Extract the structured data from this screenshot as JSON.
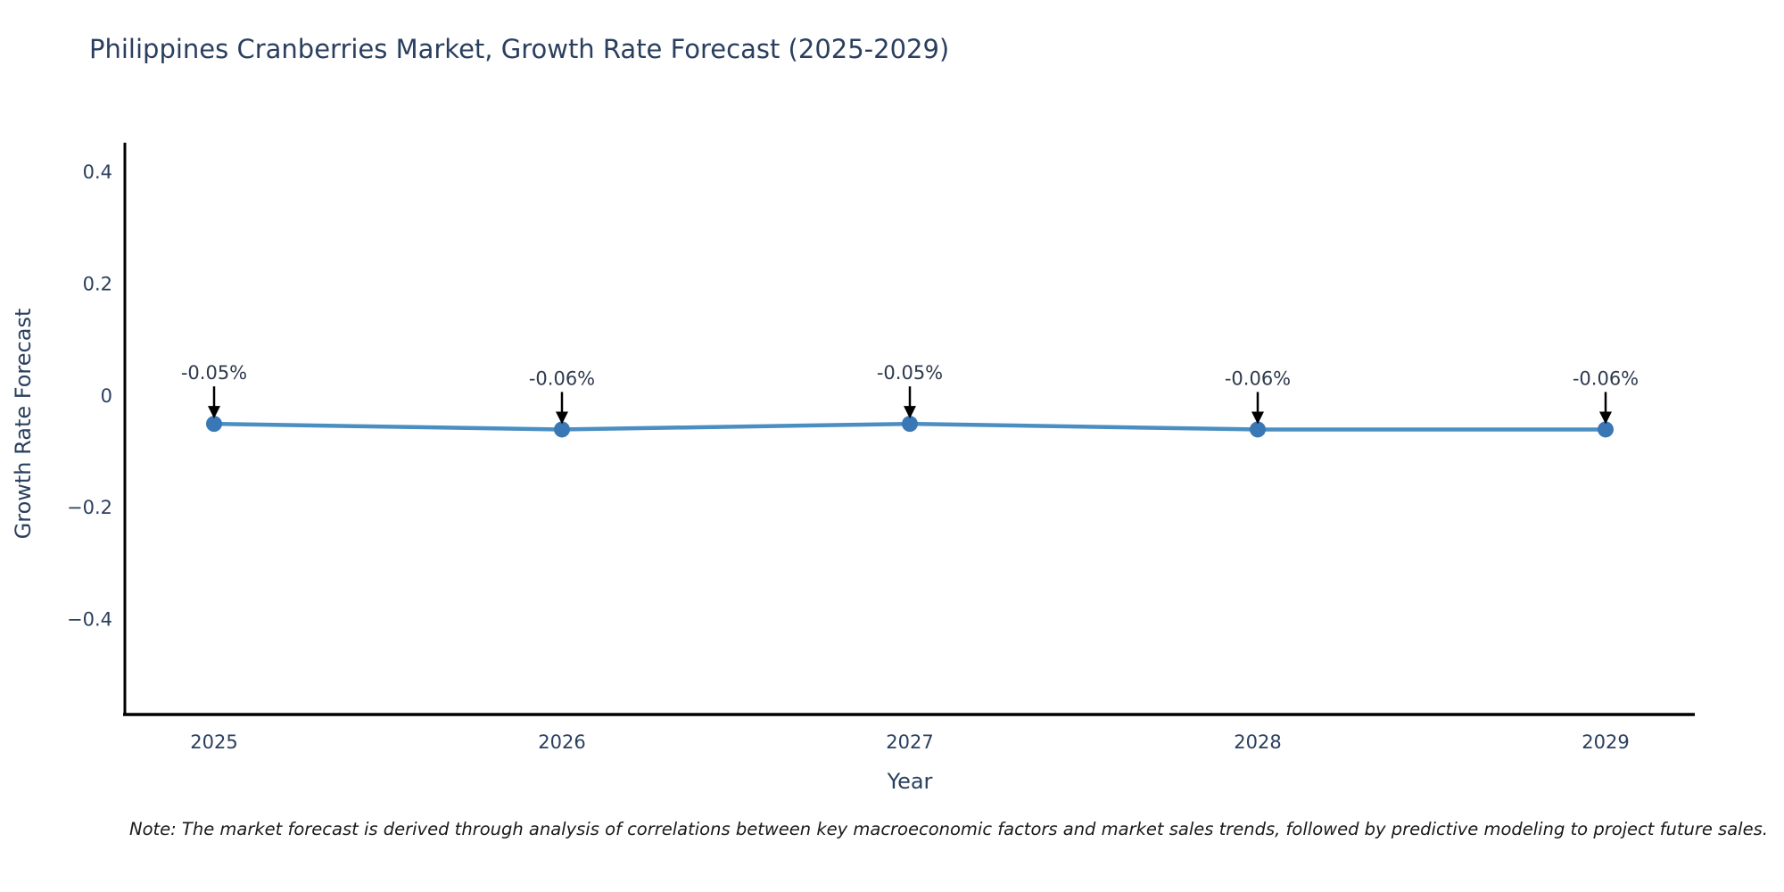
{
  "note": "Note: The market forecast is derived through analysis of correlations between key macroeconomic factors and market sales trends, followed by predictive modeling to project future sales.",
  "colors": {
    "title": "#2a3f5f",
    "tick": "#2a3f5f",
    "annotation": "#2e3a4e",
    "axis": "#000000",
    "line": "#4a8ec2",
    "marker": "#3a78b5",
    "arrow": "#000000",
    "background": "#ffffff"
  },
  "chart_data": {
    "type": "line",
    "title": "Philippines Cranberries Market, Growth Rate Forecast (2025-2029)",
    "xlabel": "Year",
    "ylabel": "Growth Rate Forecast",
    "x": [
      "2025",
      "2026",
      "2027",
      "2028",
      "2029"
    ],
    "values": [
      -0.05,
      -0.06,
      -0.05,
      -0.06,
      -0.06
    ],
    "point_labels": [
      "-0.05%",
      "-0.06%",
      "-0.05%",
      "-0.06%",
      "-0.06%"
    ],
    "yticks": [
      0.4,
      0.2,
      0,
      -0.2,
      -0.4
    ],
    "ytick_labels": [
      "0.4",
      "0.2",
      "0",
      "−0.2",
      "−0.4"
    ],
    "ylim": [
      -0.57,
      0.453
    ],
    "grid": false,
    "legend": "none",
    "annotations_have_arrows": true
  }
}
